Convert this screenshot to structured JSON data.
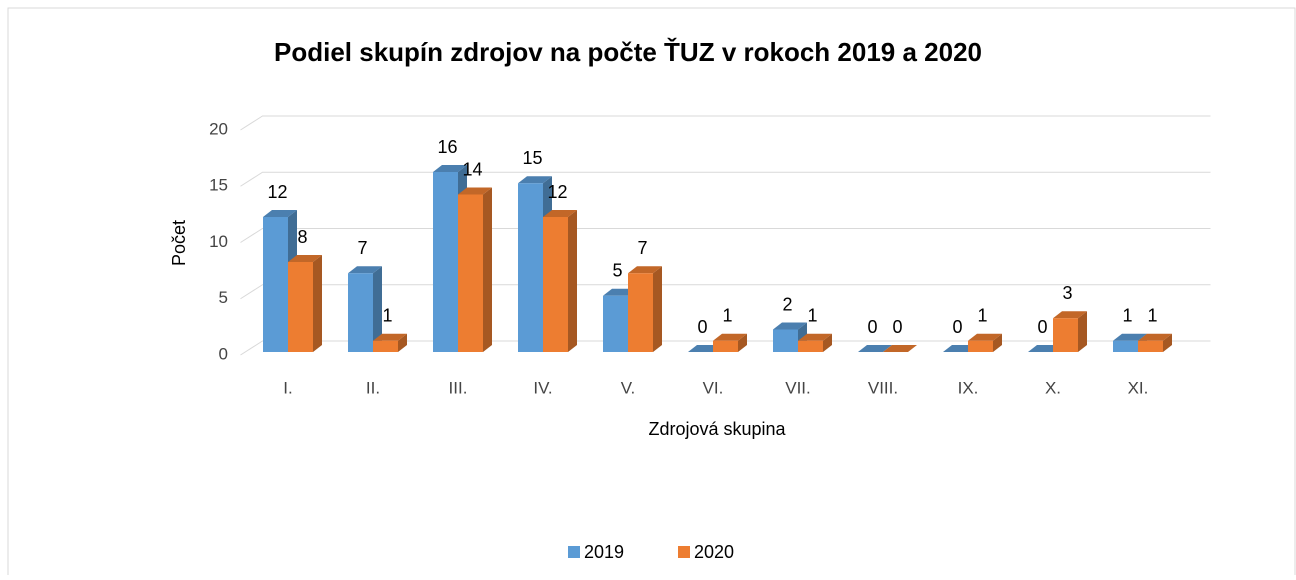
{
  "chart_data": {
    "type": "bar3d",
    "title": "Podiel skupín zdrojov na počte ŤUZ v rokoch 2019 a 2020",
    "ylabel": "Počet",
    "xlabel": "Zdrojová skupina",
    "categories": [
      "I.",
      "II.",
      "III.",
      "IV.",
      "V.",
      "VI.",
      "VII.",
      "VIII.",
      "IX.",
      "X.",
      "XI."
    ],
    "series": [
      {
        "name": "2019",
        "color": "#5b9bd5",
        "values": [
          12,
          7,
          16,
          15,
          5,
          0,
          2,
          0,
          0,
          0,
          1
        ]
      },
      {
        "name": "2020",
        "color": "#ed7d31",
        "values": [
          8,
          1,
          14,
          12,
          7,
          1,
          1,
          0,
          1,
          3,
          1
        ]
      }
    ],
    "ylim": [
      0,
      20
    ],
    "yticks": [
      0,
      5,
      10,
      15,
      20
    ],
    "grid": true,
    "legend": "bottom"
  }
}
